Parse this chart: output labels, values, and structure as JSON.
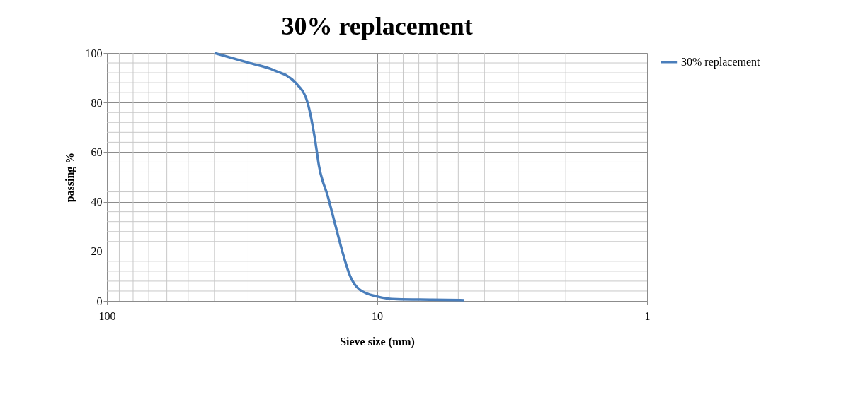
{
  "chart_data": {
    "type": "line",
    "title": "30% replacement",
    "xlabel": "Sieve size (mm)",
    "ylabel": "passing %",
    "log": "x",
    "xlim": [
      100,
      1
    ],
    "xticks": [
      100,
      10,
      1
    ],
    "ylim": [
      0,
      100
    ],
    "yticks": [
      0,
      20,
      40,
      60,
      80,
      100
    ],
    "grid": true,
    "legend": "right",
    "marker": "none",
    "line_style": "solid",
    "series": [
      {
        "name": "30% replacement",
        "color": "#4a7ebb",
        "x": [
          40,
          30,
          24.0,
          20,
          18.1,
          17.0,
          16.4,
          15.2,
          14.2,
          13.4,
          12.6,
          11.6,
          10,
          8.43,
          6.24,
          4.75
        ],
        "values": [
          100,
          96.1,
          93.0,
          87.9,
          80.2,
          65.8,
          54.5,
          42.1,
          29.8,
          19.5,
          10.3,
          4.6,
          1.8,
          0.7,
          0.5,
          0.3
        ]
      }
    ]
  }
}
